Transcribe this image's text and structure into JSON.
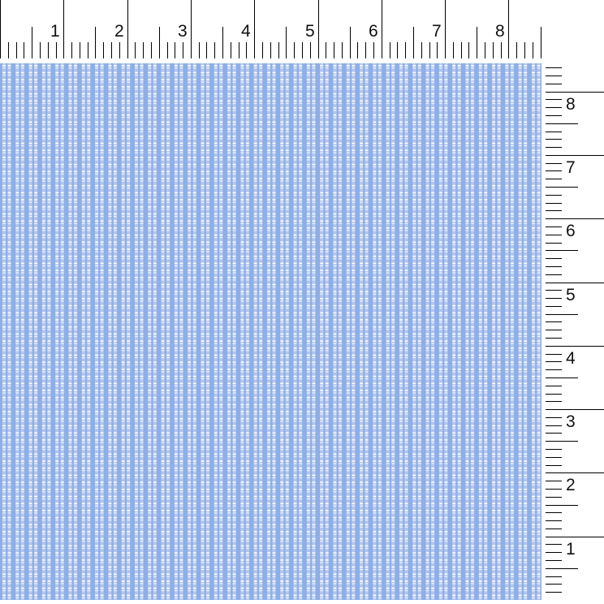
{
  "rulers": {
    "top": {
      "labels": [
        "1",
        "2",
        "3",
        "4",
        "5",
        "6",
        "7",
        "8"
      ]
    },
    "right": {
      "labels": [
        "1",
        "2",
        "3",
        "4",
        "5",
        "6",
        "7",
        "8"
      ]
    }
  },
  "fabric": {
    "pattern": "blue gingham with white dashed stripes",
    "colors": {
      "base": "#8eaee6",
      "light_stripe": "#b3c7ef",
      "dash": "#ffffff"
    }
  }
}
